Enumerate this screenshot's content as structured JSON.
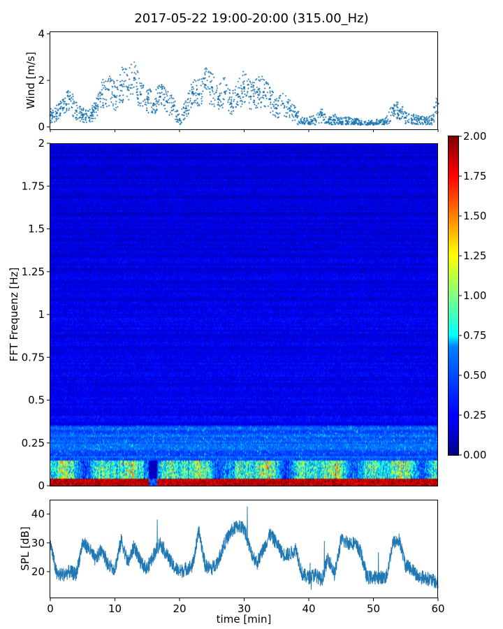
{
  "title": "2017-05-22 19:00-20:00 (315.00_Hz)",
  "chart_data": [
    {
      "name": "wind",
      "type": "scatter",
      "ylabel": "Wind [m/s]",
      "xlim": [
        0,
        60
      ],
      "ylim": [
        -0.1,
        4.1
      ],
      "yticks": [
        0,
        2,
        4
      ],
      "ytick_labels": [
        "0",
        "2",
        "4"
      ],
      "xtick_values": [
        0,
        10,
        20,
        30,
        40,
        50,
        60
      ],
      "color": "#1f77b4",
      "x": [
        0,
        1,
        2,
        3,
        4,
        5,
        6,
        7,
        8,
        9,
        10,
        11,
        12,
        13,
        14,
        15,
        16,
        17,
        18,
        19,
        20,
        21,
        22,
        23,
        24,
        25,
        26,
        27,
        28,
        29,
        30,
        31,
        32,
        33,
        34,
        35,
        36,
        37,
        38,
        39,
        40,
        41,
        42,
        43,
        44,
        45,
        46,
        47,
        48,
        49,
        50,
        51,
        52,
        53,
        54,
        55,
        56,
        57,
        58,
        59,
        60
      ],
      "y": [
        0.5,
        0.6,
        0.8,
        1.2,
        0.7,
        0.5,
        0.4,
        0.8,
        1.4,
        1.6,
        1.3,
        1.8,
        1.7,
        2.1,
        1.4,
        1.2,
        1.0,
        1.3,
        1.1,
        0.9,
        0.3,
        0.8,
        1.5,
        1.4,
        1.8,
        1.7,
        1.2,
        1.5,
        1.0,
        1.4,
        1.7,
        1.3,
        1.5,
        1.5,
        1.2,
        0.8,
        1.0,
        0.8,
        0.5,
        0.2,
        0.2,
        0.3,
        0.5,
        0.2,
        0.3,
        0.2,
        0.2,
        0.2,
        0.1,
        0.1,
        0.1,
        0.2,
        0.2,
        0.8,
        0.7,
        0.4,
        0.3,
        0.3,
        0.2,
        0.3,
        1.0
      ]
    },
    {
      "name": "spectrogram",
      "type": "heatmap",
      "ylabel": "FFT Frequenz [Hz]",
      "xlim": [
        0,
        60
      ],
      "ylim": [
        0,
        2
      ],
      "yticks": [
        0,
        0.25,
        0.5,
        0.75,
        1,
        1.25,
        1.5,
        1.75,
        2
      ],
      "ytick_labels": [
        "0",
        "0.25",
        "0.5",
        "0.75",
        "1",
        "1.25",
        "1.5",
        "1.75",
        "2"
      ],
      "colormap": "jet",
      "colorbar": {
        "range": [
          0,
          2
        ],
        "ticks": [
          0,
          0.25,
          0.5,
          0.75,
          1,
          1.25,
          1.5,
          1.75,
          2
        ],
        "tick_labels": [
          "0.00",
          "0.25",
          "0.50",
          "0.75",
          "1.00",
          "1.25",
          "1.50",
          "1.75",
          "2.00"
        ]
      }
    },
    {
      "name": "spl",
      "type": "line",
      "ylabel": "SPL [dB]",
      "xlabel": "time [min]",
      "xlim": [
        0,
        60
      ],
      "ylim": [
        11,
        45
      ],
      "yticks": [
        20,
        30,
        40
      ],
      "ytick_labels": [
        "20",
        "30",
        "40"
      ],
      "xticks": [
        0,
        10,
        20,
        30,
        40,
        50,
        60
      ],
      "xtick_labels": [
        "0",
        "10",
        "20",
        "30",
        "40",
        "50",
        "60"
      ],
      "color": "#1f77b4",
      "x": [
        0,
        1,
        2,
        3,
        4,
        5,
        6,
        7,
        8,
        9,
        10,
        11,
        12,
        13,
        14,
        15,
        16,
        17,
        18,
        19,
        20,
        21,
        22,
        23,
        24,
        25,
        26,
        27,
        28,
        29,
        30,
        31,
        32,
        33,
        34,
        35,
        36,
        37,
        38,
        39,
        40,
        41,
        42,
        43,
        44,
        45,
        46,
        47,
        48,
        49,
        50,
        51,
        52,
        53,
        54,
        55,
        56,
        57,
        58,
        59,
        60
      ],
      "y": [
        30,
        19,
        19,
        20,
        19,
        30,
        28,
        24,
        28,
        22,
        21,
        31,
        23,
        29,
        23,
        21,
        26,
        30,
        26,
        22,
        20,
        21,
        22,
        34,
        22,
        21,
        24,
        30,
        34,
        36,
        35,
        27,
        23,
        28,
        33,
        30,
        26,
        26,
        28,
        19,
        18,
        19,
        17,
        25,
        19,
        31,
        30,
        30,
        27,
        18,
        18,
        18,
        18,
        30,
        31,
        22,
        21,
        18,
        18,
        17,
        16
      ]
    }
  ]
}
